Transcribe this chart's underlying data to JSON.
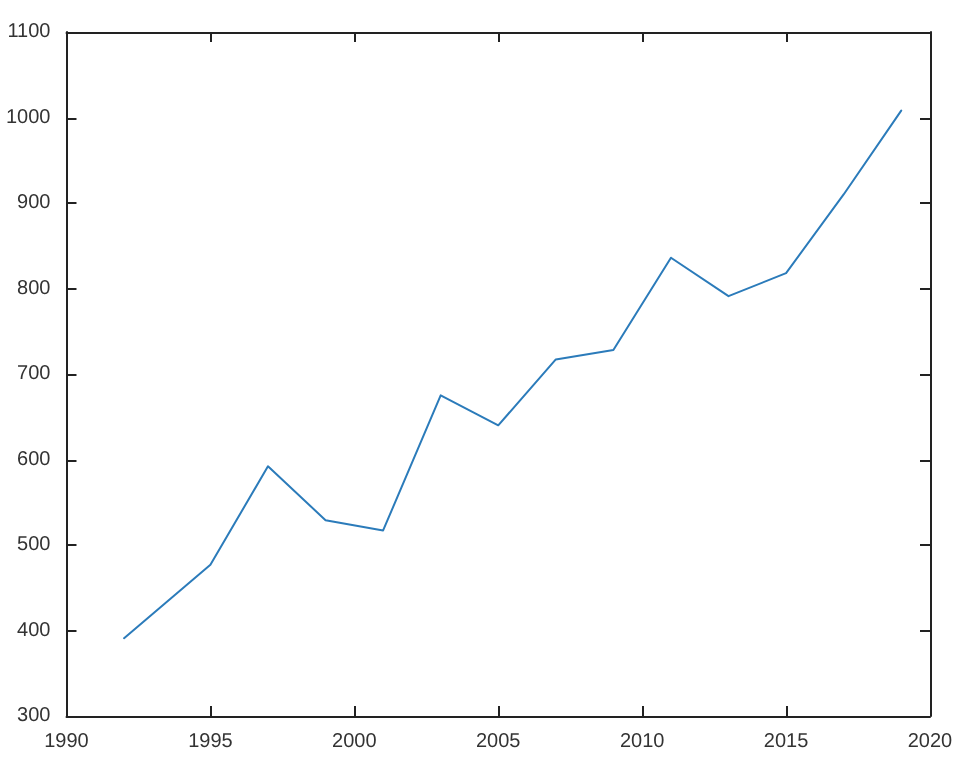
{
  "chart_data": {
    "type": "line",
    "x": [
      1992,
      1995,
      1997,
      1999,
      2001,
      2003,
      2005,
      2007,
      2009,
      2011,
      2013,
      2015,
      2017,
      2019
    ],
    "values": [
      391,
      477,
      592,
      529,
      517,
      675,
      640,
      717,
      728,
      836,
      791,
      818,
      910,
      1008
    ],
    "color": "#2b7bba",
    "xlim": [
      1990,
      2020
    ],
    "xticks": [
      1990,
      1995,
      2000,
      2005,
      2010,
      2015,
      2020
    ],
    "ylim": [
      300,
      1100
    ],
    "yticks": [
      300,
      400,
      500,
      600,
      700,
      800,
      900,
      1000,
      1100
    ],
    "grid": false,
    "marker": "none",
    "line_style": "solid"
  }
}
